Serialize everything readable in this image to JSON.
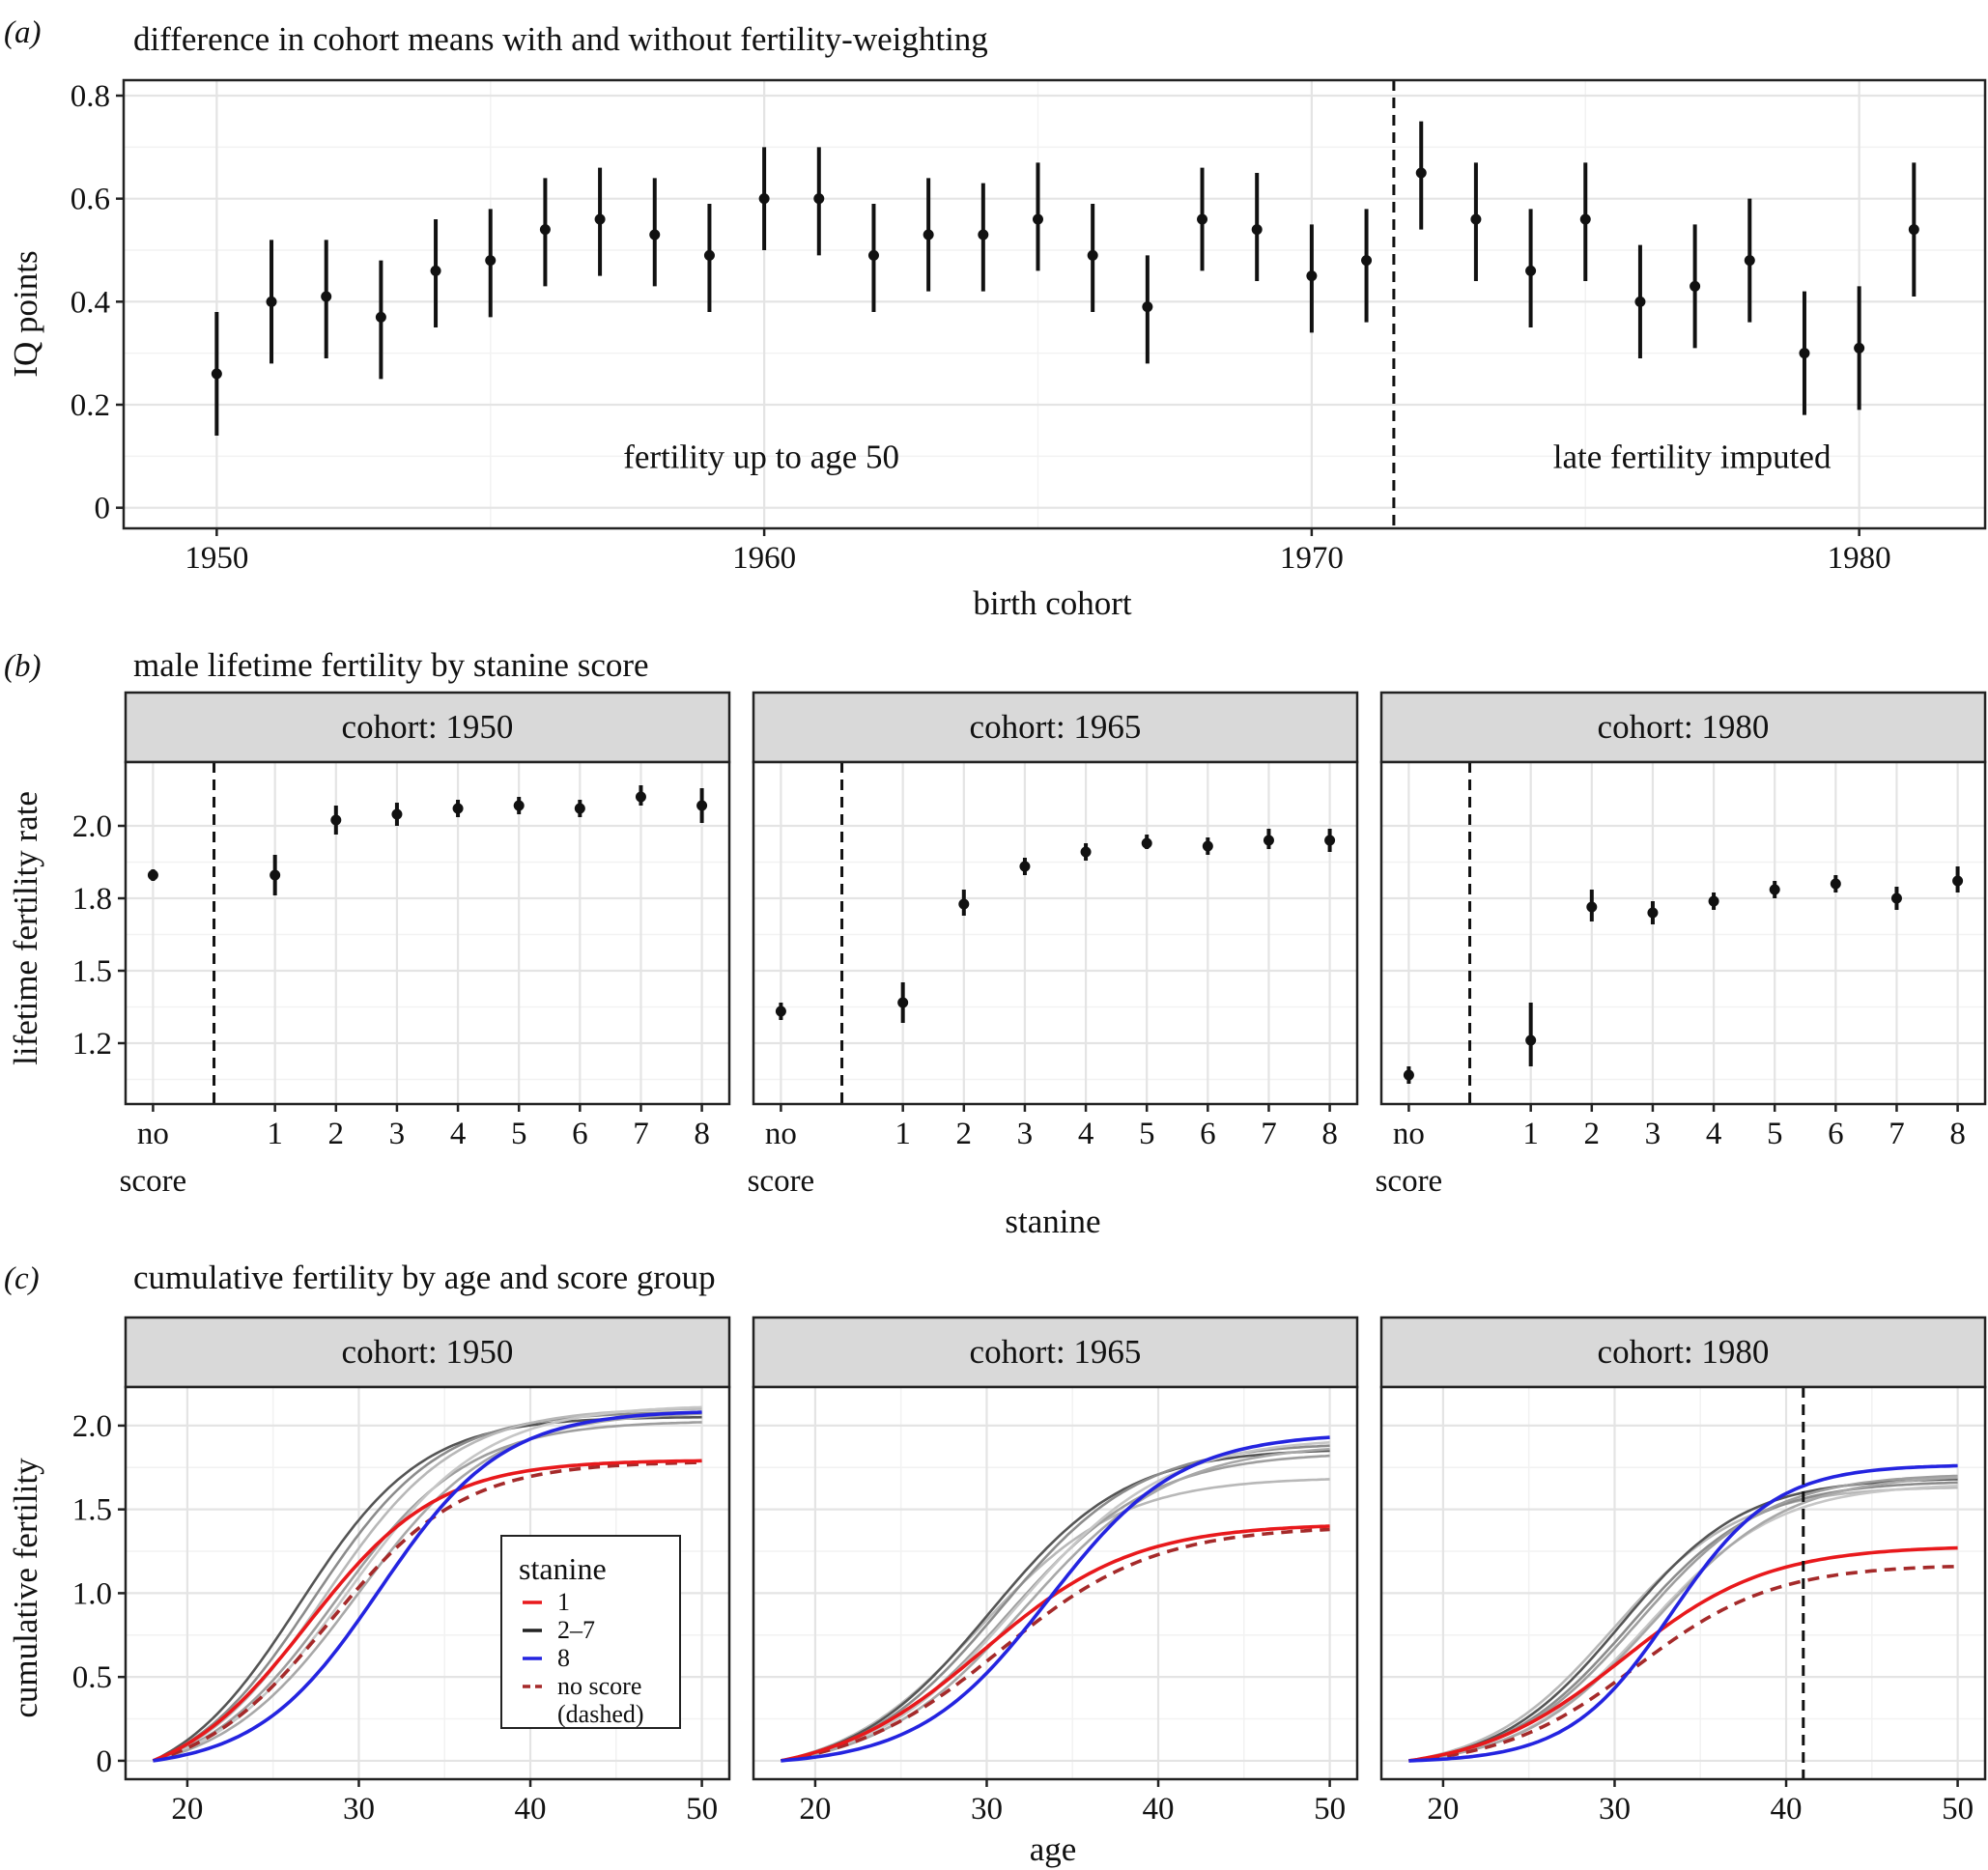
{
  "panels": {
    "a": {
      "letter": "a",
      "title": "difference in cohort means with and without fertility-weighting"
    },
    "b": {
      "letter": "b",
      "title": "male lifetime fertility by stanine score"
    },
    "c": {
      "letter": "c",
      "title": "cumulative fertility by age and score group"
    }
  },
  "chart_data": [
    {
      "id": "a",
      "type": "scatter",
      "title": "difference in cohort means with and without fertility-weighting",
      "xlabel": "birth cohort",
      "ylabel": "IQ points",
      "xlim": [
        1948.3,
        1982.3
      ],
      "ylim": [
        -0.04,
        0.83
      ],
      "xticks": [
        1950,
        1960,
        1970,
        1980
      ],
      "yticks": [
        0,
        0.2,
        0.4,
        0.6,
        0.8
      ],
      "ytick_labels": [
        "0",
        "0.2",
        "0.4",
        "0.6",
        "0.8"
      ],
      "grid": true,
      "vline": 1971.5,
      "annotations": [
        {
          "text": "fertility up to age 50",
          "x": 1960,
          "y": 0.1
        },
        {
          "text": "late fertility imputed",
          "x": 1977,
          "y": 0.1
        }
      ],
      "points": [
        {
          "x": 1950,
          "y": 0.26,
          "lo": 0.14,
          "hi": 0.38
        },
        {
          "x": 1951,
          "y": 0.4,
          "lo": 0.28,
          "hi": 0.52
        },
        {
          "x": 1952,
          "y": 0.41,
          "lo": 0.29,
          "hi": 0.52
        },
        {
          "x": 1953,
          "y": 0.37,
          "lo": 0.25,
          "hi": 0.48
        },
        {
          "x": 1954,
          "y": 0.46,
          "lo": 0.35,
          "hi": 0.56
        },
        {
          "x": 1955,
          "y": 0.48,
          "lo": 0.37,
          "hi": 0.58
        },
        {
          "x": 1956,
          "y": 0.54,
          "lo": 0.43,
          "hi": 0.64
        },
        {
          "x": 1957,
          "y": 0.56,
          "lo": 0.45,
          "hi": 0.66
        },
        {
          "x": 1958,
          "y": 0.53,
          "lo": 0.43,
          "hi": 0.64
        },
        {
          "x": 1959,
          "y": 0.49,
          "lo": 0.38,
          "hi": 0.59
        },
        {
          "x": 1960,
          "y": 0.6,
          "lo": 0.5,
          "hi": 0.7
        },
        {
          "x": 1961,
          "y": 0.6,
          "lo": 0.49,
          "hi": 0.7
        },
        {
          "x": 1962,
          "y": 0.49,
          "lo": 0.38,
          "hi": 0.59
        },
        {
          "x": 1963,
          "y": 0.53,
          "lo": 0.42,
          "hi": 0.64
        },
        {
          "x": 1964,
          "y": 0.53,
          "lo": 0.42,
          "hi": 0.63
        },
        {
          "x": 1965,
          "y": 0.56,
          "lo": 0.46,
          "hi": 0.67
        },
        {
          "x": 1966,
          "y": 0.49,
          "lo": 0.38,
          "hi": 0.59
        },
        {
          "x": 1967,
          "y": 0.39,
          "lo": 0.28,
          "hi": 0.49
        },
        {
          "x": 1968,
          "y": 0.56,
          "lo": 0.46,
          "hi": 0.66
        },
        {
          "x": 1969,
          "y": 0.54,
          "lo": 0.44,
          "hi": 0.65
        },
        {
          "x": 1970,
          "y": 0.45,
          "lo": 0.34,
          "hi": 0.55
        },
        {
          "x": 1971,
          "y": 0.48,
          "lo": 0.36,
          "hi": 0.58
        },
        {
          "x": 1972,
          "y": 0.65,
          "lo": 0.54,
          "hi": 0.75
        },
        {
          "x": 1973,
          "y": 0.56,
          "lo": 0.44,
          "hi": 0.67
        },
        {
          "x": 1974,
          "y": 0.46,
          "lo": 0.35,
          "hi": 0.58
        },
        {
          "x": 1975,
          "y": 0.56,
          "lo": 0.44,
          "hi": 0.67
        },
        {
          "x": 1976,
          "y": 0.4,
          "lo": 0.29,
          "hi": 0.51
        },
        {
          "x": 1977,
          "y": 0.43,
          "lo": 0.31,
          "hi": 0.55
        },
        {
          "x": 1978,
          "y": 0.48,
          "lo": 0.36,
          "hi": 0.6
        },
        {
          "x": 1979,
          "y": 0.3,
          "lo": 0.18,
          "hi": 0.42
        },
        {
          "x": 1980,
          "y": 0.31,
          "lo": 0.19,
          "hi": 0.43
        },
        {
          "x": 1981,
          "y": 0.54,
          "lo": 0.41,
          "hi": 0.67
        }
      ]
    },
    {
      "id": "b",
      "type": "scatter",
      "title": "male lifetime fertility by stanine score",
      "xlabel": "stanine",
      "ylabel": "lifetime fertility rate",
      "categories": [
        "no score",
        "1",
        "2",
        "3",
        "4",
        "5",
        "6",
        "7",
        "8"
      ],
      "category_display": [
        [
          "no",
          "score"
        ],
        [
          "1"
        ],
        [
          "2"
        ],
        [
          "3"
        ],
        [
          "4"
        ],
        [
          "5"
        ],
        [
          "6"
        ],
        [
          "7"
        ],
        [
          "8"
        ]
      ],
      "category_positions": [
        -1,
        1,
        2,
        3,
        4,
        5,
        6,
        7,
        8
      ],
      "xlim": [
        -1.45,
        8.45
      ],
      "vline": 0,
      "ylim": [
        1.04,
        2.22
      ],
      "yticks": [
        1.25,
        1.5,
        1.75,
        2.0
      ],
      "ytick_labels": [
        "1.2",
        "1.5",
        "1.8",
        "2.0"
      ],
      "grid": true,
      "facets": [
        {
          "label": "cohort: 1950",
          "values": [
            1.83,
            1.83,
            2.02,
            2.04,
            2.06,
            2.07,
            2.06,
            2.1,
            2.07
          ],
          "lo": [
            1.81,
            1.76,
            1.97,
            2.0,
            2.03,
            2.04,
            2.03,
            2.07,
            2.01
          ],
          "hi": [
            1.85,
            1.9,
            2.07,
            2.08,
            2.09,
            2.1,
            2.09,
            2.14,
            2.13
          ]
        },
        {
          "label": "cohort: 1965",
          "values": [
            1.36,
            1.39,
            1.73,
            1.86,
            1.91,
            1.94,
            1.93,
            1.95,
            1.95
          ],
          "lo": [
            1.33,
            1.32,
            1.69,
            1.83,
            1.88,
            1.92,
            1.9,
            1.92,
            1.91
          ],
          "hi": [
            1.39,
            1.46,
            1.78,
            1.89,
            1.94,
            1.97,
            1.96,
            1.99,
            1.99
          ]
        },
        {
          "label": "cohort: 1980",
          "values": [
            1.14,
            1.26,
            1.72,
            1.7,
            1.74,
            1.78,
            1.8,
            1.75,
            1.81
          ],
          "lo": [
            1.11,
            1.17,
            1.67,
            1.66,
            1.71,
            1.75,
            1.77,
            1.71,
            1.77
          ],
          "hi": [
            1.17,
            1.39,
            1.78,
            1.74,
            1.77,
            1.81,
            1.83,
            1.79,
            1.86
          ]
        }
      ]
    },
    {
      "id": "c",
      "type": "line",
      "title": "cumulative fertility by age and score group",
      "xlabel": "age",
      "ylabel": "cumulative fertility",
      "xlim": [
        16.4,
        51.6
      ],
      "ylim": [
        -0.11,
        2.23
      ],
      "xticks": [
        20,
        30,
        40,
        50
      ],
      "yticks": [
        0,
        0.5,
        1.0,
        1.5,
        2.0
      ],
      "ytick_labels": [
        "0",
        "0.5",
        "1.0",
        "1.5",
        "2.0"
      ],
      "grid": true,
      "age_range": [
        18,
        50
      ],
      "legend": {
        "title": "stanine",
        "position": "inside cohort 1950 panel, lower right",
        "items": [
          {
            "label": "1",
            "color": "#e8191c",
            "dash": false
          },
          {
            "label": "2–7",
            "color": "#222222",
            "dash": false
          },
          {
            "label": "8",
            "color": "#2424e0",
            "dash": false
          },
          {
            "label": [
              "no score",
              "(dashed)"
            ],
            "color": "#a52a2a",
            "dash": true
          }
        ]
      },
      "series_note": "each curve: logistic form (end value, midpoint age, spread, starting at age 18)",
      "facets": [
        {
          "label": "cohort: 1950",
          "vline": null,
          "series": [
            {
              "group": "1",
              "color": "#e8191c",
              "final": 1.79,
              "mid": 27.0,
              "spread": 3.8
            },
            {
              "group": "no score",
              "color": "#a52a2a",
              "dash": true,
              "final": 1.78,
              "mid": 28.3,
              "spread": 3.9
            },
            {
              "group": "2–7",
              "color": "#555555",
              "final": 2.05,
              "mid": 26.5,
              "spread": 3.6
            },
            {
              "group": "2–7",
              "color": "#8c8c8c",
              "final": 2.08,
              "mid": 27.3,
              "spread": 3.7
            },
            {
              "group": "2–7",
              "color": "#b8b8b8",
              "final": 2.1,
              "mid": 28.0,
              "spread": 3.8
            },
            {
              "group": "2–7",
              "color": "#9e9e9e",
              "final": 2.02,
              "mid": 28.6,
              "spread": 3.9
            },
            {
              "group": "2–7",
              "color": "#c6c6c6",
              "final": 2.11,
              "mid": 29.3,
              "spread": 4.0
            },
            {
              "group": "2–7",
              "color": "#a8a8a8",
              "final": 2.07,
              "mid": 29.9,
              "spread": 4.0
            },
            {
              "group": "8",
              "color": "#2424e0",
              "final": 2.08,
              "mid": 31.2,
              "spread": 3.6
            }
          ]
        },
        {
          "label": "cohort: 1965",
          "vline": null,
          "series": [
            {
              "group": "1",
              "color": "#e8191c",
              "final": 1.4,
              "mid": 29.8,
              "spread": 4.4
            },
            {
              "group": "no score",
              "color": "#a52a2a",
              "dash": true,
              "final": 1.38,
              "mid": 30.8,
              "spread": 4.5
            },
            {
              "group": "2–7",
              "color": "#b8b8b8",
              "final": 1.68,
              "mid": 29.6,
              "spread": 4.1
            },
            {
              "group": "2–7",
              "color": "#555555",
              "final": 1.85,
              "mid": 30.2,
              "spread": 4.0
            },
            {
              "group": "2–7",
              "color": "#8c8c8c",
              "final": 1.88,
              "mid": 30.8,
              "spread": 4.1
            },
            {
              "group": "2–7",
              "color": "#9e9e9e",
              "final": 1.82,
              "mid": 31.3,
              "spread": 4.2
            },
            {
              "group": "2–7",
              "color": "#c6c6c6",
              "final": 1.9,
              "mid": 31.8,
              "spread": 4.3
            },
            {
              "group": "2–7",
              "color": "#a8a8a8",
              "final": 1.86,
              "mid": 32.2,
              "spread": 4.3
            },
            {
              "group": "8",
              "color": "#2424e0",
              "final": 1.93,
              "mid": 33.6,
              "spread": 3.8
            }
          ]
        },
        {
          "label": "cohort: 1980",
          "vline": 41,
          "series": [
            {
              "group": "1",
              "color": "#e8191c",
              "final": 1.27,
              "mid": 30.5,
              "spread": 4.2
            },
            {
              "group": "no score",
              "color": "#a52a2a",
              "dash": true,
              "final": 1.16,
              "mid": 31.3,
              "spread": 4.0
            },
            {
              "group": "2–7",
              "color": "#b8b8b8",
              "final": 1.63,
              "mid": 29.9,
              "spread": 3.7
            },
            {
              "group": "2–7",
              "color": "#555555",
              "final": 1.68,
              "mid": 30.4,
              "spread": 3.6
            },
            {
              "group": "2–7",
              "color": "#8c8c8c",
              "final": 1.66,
              "mid": 30.9,
              "spread": 3.7
            },
            {
              "group": "2–7",
              "color": "#9e9e9e",
              "final": 1.7,
              "mid": 31.4,
              "spread": 3.8
            },
            {
              "group": "2–7",
              "color": "#c6c6c6",
              "final": 1.64,
              "mid": 31.9,
              "spread": 3.8
            },
            {
              "group": "2–7",
              "color": "#a8a8a8",
              "final": 1.69,
              "mid": 32.3,
              "spread": 3.9
            },
            {
              "group": "8",
              "color": "#2424e0",
              "final": 1.76,
              "mid": 33.3,
              "spread": 3.0
            }
          ]
        }
      ]
    }
  ]
}
